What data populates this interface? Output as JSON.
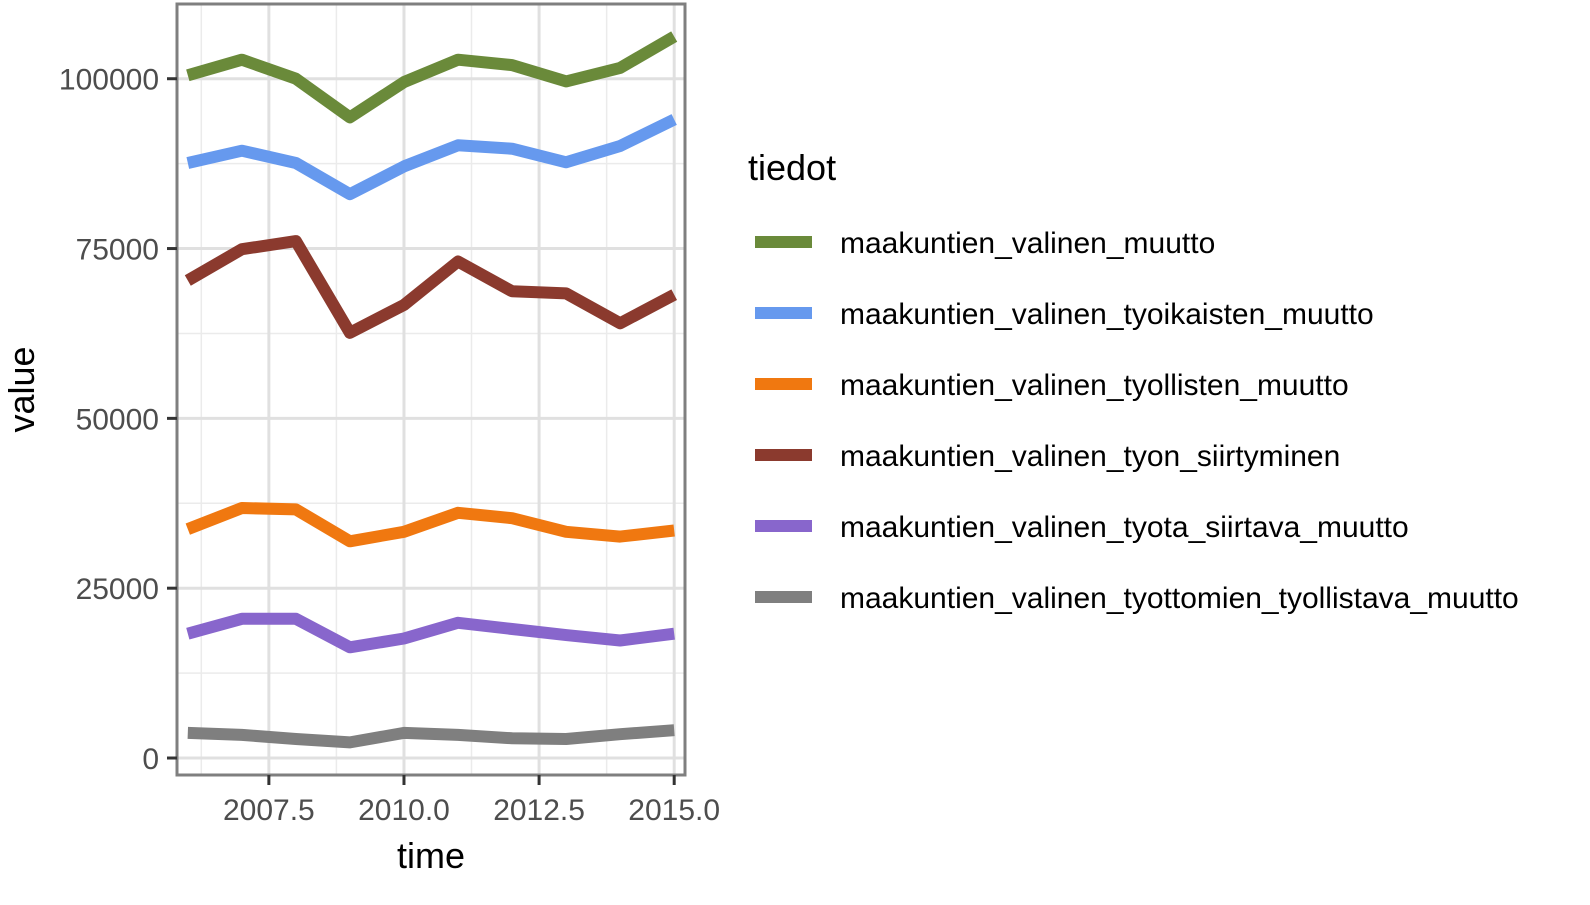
{
  "chart_data": {
    "type": "line",
    "xlabel": "time",
    "ylabel": "value",
    "xlim": [
      2005.8,
      2015.2
    ],
    "ylim": [
      -2500,
      111000
    ],
    "x_ticks": [
      2007.5,
      2010.0,
      2012.5,
      2015.0
    ],
    "x_tick_labels": [
      "2007.5",
      "2010.0",
      "2012.5",
      "2015.0"
    ],
    "y_ticks": [
      0,
      25000,
      50000,
      75000,
      100000
    ],
    "y_tick_labels": [
      "0",
      "25000",
      "50000",
      "75000",
      "100000"
    ],
    "grid": true,
    "legend": {
      "title": "tiedot",
      "position": "right"
    },
    "x": [
      2006,
      2007,
      2008,
      2009,
      2010,
      2011,
      2012,
      2013,
      2014,
      2015
    ],
    "series": [
      {
        "name": "maakuntien_valinen_muutto",
        "color": "#6A8A3A",
        "values": [
          100500,
          102800,
          100000,
          94300,
          99500,
          102800,
          102000,
          99600,
          101600,
          106200
        ]
      },
      {
        "name": "maakuntien_valinen_tyoikaisten_muutto",
        "color": "#6699EE",
        "values": [
          87600,
          89400,
          87600,
          83000,
          87100,
          90200,
          89700,
          87700,
          90100,
          94000
        ]
      },
      {
        "name": "maakuntien_valinen_tyollisten_muutto",
        "color": "#F07810",
        "values": [
          33700,
          36800,
          36600,
          31900,
          33300,
          36100,
          35300,
          33300,
          32600,
          33500
        ]
      },
      {
        "name": "maakuntien_valinen_tyon_siirtyminen",
        "color": "#8B3A2E",
        "values": [
          70300,
          74900,
          76100,
          62600,
          66700,
          73100,
          68700,
          68400,
          64000,
          68200
        ]
      },
      {
        "name": "maakuntien_valinen_tyota_siirtava_muutto",
        "color": "#8866CC",
        "values": [
          18300,
          20500,
          20500,
          16300,
          17600,
          19900,
          19000,
          18100,
          17300,
          18300
        ]
      },
      {
        "name": "maakuntien_valinen_tyottomien_tyollistava_muutto",
        "color": "#7F7F7F",
        "values": [
          3700,
          3400,
          2800,
          2300,
          3700,
          3400,
          2900,
          2800,
          3500,
          4100
        ]
      }
    ]
  }
}
